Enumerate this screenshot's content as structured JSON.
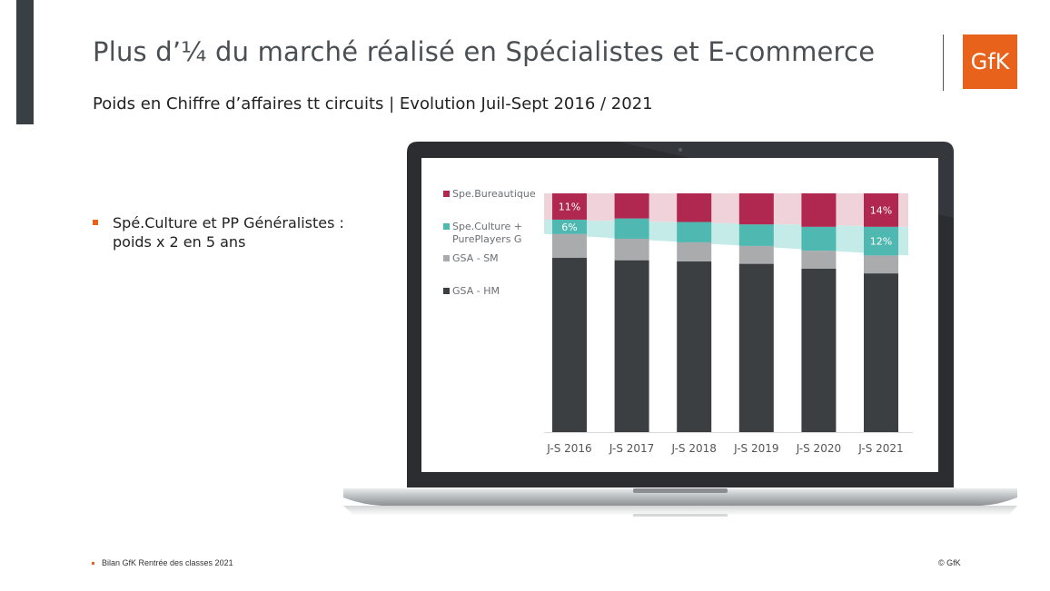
{
  "slide": {
    "title": "Plus d’¼ du marché réalisé en Spécialistes et E-commerce",
    "subtitle": "Poids en Chiffre d’affaires tt circuits | Evolution Juil-Sept 2016 / 2021",
    "logo_text": "GfK",
    "bullet": "Spé.Culture et PP Généralistes : poids x 2 en 5 ans",
    "footer_left": "Bilan GfK Rentrée des classes 2021",
    "footer_right": "© GfK"
  },
  "colors": {
    "accent": "#e9621b",
    "bureautique": "#b0284f",
    "culture": "#4fb8b0",
    "gsa_sm": "#a9abad",
    "gsa_hm": "#3b3f42",
    "band_pink": "#f0d3da",
    "band_teal": "#c4ebe7"
  },
  "chart_data": {
    "type": "bar",
    "stacked": true,
    "categories": [
      "J-S 2016",
      "J-S 2017",
      "J-S 2018",
      "J-S 2019",
      "J-S 2020",
      "J-S 2021"
    ],
    "ylim": [
      0,
      100
    ],
    "series": [
      {
        "name": "GSA - HM",
        "key": "gsa_hm",
        "values": [
          73,
          72,
          71.5,
          70.5,
          68.5,
          66.5
        ]
      },
      {
        "name": "GSA - SM",
        "key": "gsa_sm",
        "values": [
          10,
          9,
          8,
          7.5,
          7.5,
          7.5
        ]
      },
      {
        "name": "Spe.Culture + PurePlayers G",
        "key": "culture",
        "values": [
          6,
          8.5,
          8.5,
          9,
          10,
          12
        ]
      },
      {
        "name": "Spe.Bureautique",
        "key": "bureautique",
        "values": [
          11,
          10.5,
          12,
          13,
          14,
          14
        ]
      }
    ],
    "data_labels": [
      {
        "series": "Spe.Bureautique",
        "category": "J-S 2016",
        "text": "11%"
      },
      {
        "series": "Spe.Culture + PurePlayers G",
        "category": "J-S 2016",
        "text": "6%"
      },
      {
        "series": "Spe.Bureautique",
        "category": "J-S 2021",
        "text": "14%"
      },
      {
        "series": "Spe.Culture + PurePlayers G",
        "category": "J-S 2021",
        "text": "12%"
      }
    ],
    "legend": [
      {
        "lines": [
          "Spe.Bureautique"
        ],
        "key": "bureautique"
      },
      {
        "lines": [
          "Spe.Culture +",
          "PurePlayers G"
        ],
        "key": "culture"
      },
      {
        "lines": [
          "GSA - SM"
        ],
        "key": "gsa_sm"
      },
      {
        "lines": [
          "GSA - HM"
        ],
        "key": "gsa_hm"
      }
    ],
    "legend_position": "left",
    "grid": false
  }
}
